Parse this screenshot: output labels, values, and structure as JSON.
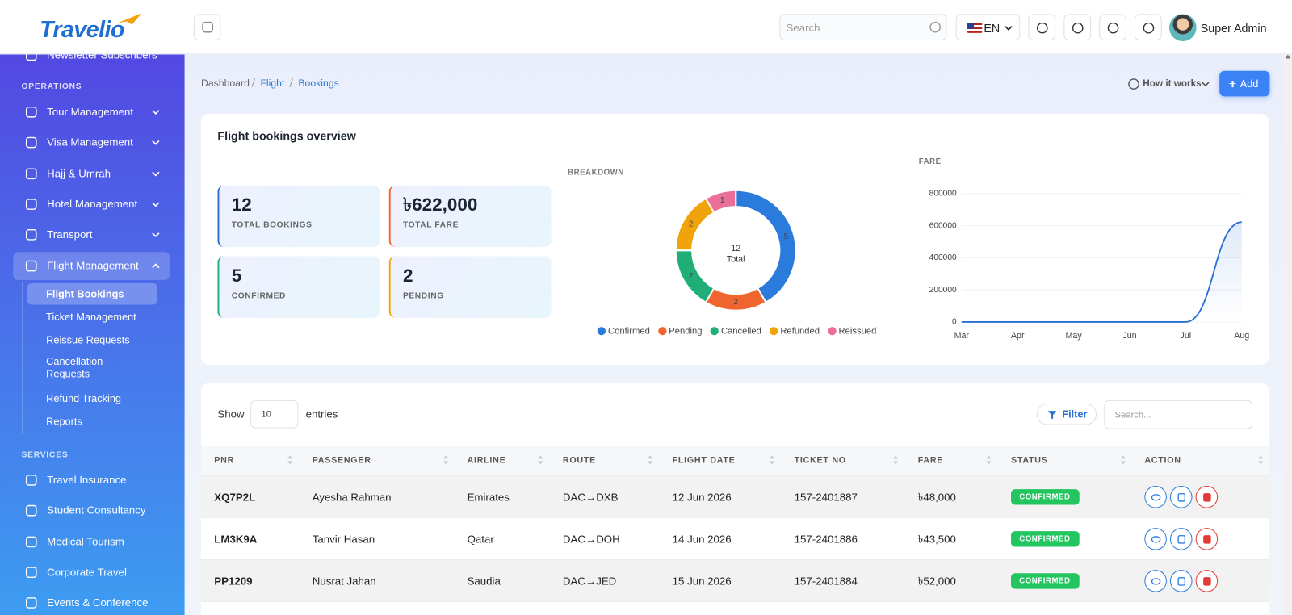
{
  "brand": "Travelio",
  "header": {
    "search_placeholder": "Search",
    "language": "EN",
    "user": "Super Admin"
  },
  "sidebar": {
    "top_item": "Newsletter Subscribers",
    "operations_title": "OPERATIONS",
    "operations": [
      "Tour Management",
      "Visa Management",
      "Hajj & Umrah",
      "Hotel Management",
      "Transport",
      "Flight Management"
    ],
    "flight_submenu": [
      "Flight Bookings",
      "Ticket Management",
      "Reissue Requests",
      "Cancellation Requests",
      "Refund Tracking",
      "Reports"
    ],
    "services_title": "SERVICES",
    "services": [
      "Travel Insurance",
      "Student Consultancy",
      "Medical Tourism",
      "Corporate Travel",
      "Events & Conference"
    ]
  },
  "breadcrumb": [
    "Dashboard",
    "Flight",
    "Bookings"
  ],
  "how_it_works": "How it works",
  "add": "Add",
  "overview": {
    "title": "Flight bookings overview",
    "stats": [
      {
        "value": 12,
        "label": "TOTAL BOOKINGS",
        "color": "#2b6fd6"
      },
      {
        "value": "৳622,000",
        "label": "TOTAL FARE",
        "color": "#f0642e"
      },
      {
        "value": 5,
        "label": "CONFIRMED",
        "color": "#1fae77"
      },
      {
        "value": 2,
        "label": "PENDING",
        "color": "#f0a30a"
      }
    ]
  },
  "breakdown": {
    "type": "donut",
    "title": "BREAKDOWN",
    "center_value": 12,
    "center_label": "Total",
    "categories": [
      "Confirmed",
      "Pending",
      "Cancelled",
      "Refunded",
      "Reissued"
    ],
    "values": [
      5,
      2,
      2,
      2,
      1
    ],
    "colors": [
      "#2b7bdc",
      "#f0642e",
      "#1fae77",
      "#f0a30a",
      "#ec6f9b"
    ]
  },
  "fare_chart": {
    "type": "line",
    "title": "FARE",
    "x": [
      "Mar",
      "Apr",
      "May",
      "Jun",
      "Jul",
      "Aug"
    ],
    "values": [
      0,
      0,
      0,
      0,
      0,
      622000
    ],
    "ylim": [
      0,
      800000
    ],
    "yticks": [
      0,
      200000,
      400000,
      600000,
      800000
    ],
    "color": "#2b6fd6",
    "grid": true
  },
  "table": {
    "show": "Show",
    "entries_value": 10,
    "entries": "entries",
    "filter": "Filter",
    "search_placeholder": "Search...",
    "columns": [
      "PNR",
      "PASSENGER",
      "AIRLINE",
      "ROUTE",
      "FLIGHT DATE",
      "TICKET NO",
      "FARE",
      "STATUS",
      "ACTION"
    ],
    "rows": [
      [
        "XQ7P2L",
        "Ayesha Rahman",
        "Emirates",
        "DAC→DXB",
        "12 Jun 2026",
        "157-2401887",
        "৳48,000",
        "CONFIRMED"
      ],
      [
        "LM3K9A",
        "Tanvir Hasan",
        "Qatar",
        "DAC→DOH",
        "14 Jun 2026",
        "157-2401886",
        "৳43,500",
        "CONFIRMED"
      ],
      [
        "PP1209",
        "Nusrat Jahan",
        "Saudia",
        "DAC→JED",
        "15 Jun 2026",
        "157-2401884",
        "৳52,000",
        "CONFIRMED"
      ]
    ]
  }
}
